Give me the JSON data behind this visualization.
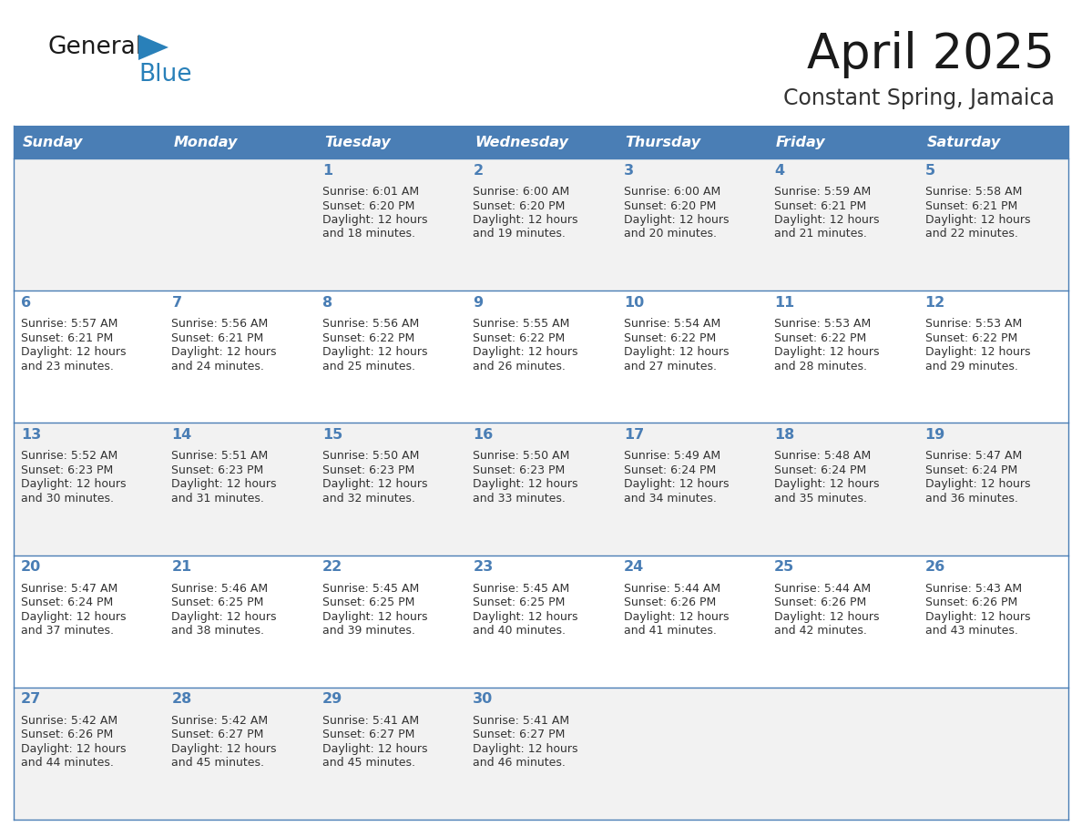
{
  "title": "April 2025",
  "subtitle": "Constant Spring, Jamaica",
  "header_bg_color": "#4a7eb5",
  "header_text_color": "#ffffff",
  "row_bg_even": "#f2f2f2",
  "row_bg_odd": "#ffffff",
  "grid_line_color": "#4a7eb5",
  "day_number_color": "#4a7eb5",
  "cell_text_color": "#333333",
  "days_of_week": [
    "Sunday",
    "Monday",
    "Tuesday",
    "Wednesday",
    "Thursday",
    "Friday",
    "Saturday"
  ],
  "calendar_data": [
    [
      {
        "day": "",
        "sunrise": "",
        "sunset": "",
        "daylight": ""
      },
      {
        "day": "",
        "sunrise": "",
        "sunset": "",
        "daylight": ""
      },
      {
        "day": "1",
        "sunrise": "Sunrise: 6:01 AM",
        "sunset": "Sunset: 6:20 PM",
        "daylight": "Daylight: 12 hours\nand 18 minutes."
      },
      {
        "day": "2",
        "sunrise": "Sunrise: 6:00 AM",
        "sunset": "Sunset: 6:20 PM",
        "daylight": "Daylight: 12 hours\nand 19 minutes."
      },
      {
        "day": "3",
        "sunrise": "Sunrise: 6:00 AM",
        "sunset": "Sunset: 6:20 PM",
        "daylight": "Daylight: 12 hours\nand 20 minutes."
      },
      {
        "day": "4",
        "sunrise": "Sunrise: 5:59 AM",
        "sunset": "Sunset: 6:21 PM",
        "daylight": "Daylight: 12 hours\nand 21 minutes."
      },
      {
        "day": "5",
        "sunrise": "Sunrise: 5:58 AM",
        "sunset": "Sunset: 6:21 PM",
        "daylight": "Daylight: 12 hours\nand 22 minutes."
      }
    ],
    [
      {
        "day": "6",
        "sunrise": "Sunrise: 5:57 AM",
        "sunset": "Sunset: 6:21 PM",
        "daylight": "Daylight: 12 hours\nand 23 minutes."
      },
      {
        "day": "7",
        "sunrise": "Sunrise: 5:56 AM",
        "sunset": "Sunset: 6:21 PM",
        "daylight": "Daylight: 12 hours\nand 24 minutes."
      },
      {
        "day": "8",
        "sunrise": "Sunrise: 5:56 AM",
        "sunset": "Sunset: 6:22 PM",
        "daylight": "Daylight: 12 hours\nand 25 minutes."
      },
      {
        "day": "9",
        "sunrise": "Sunrise: 5:55 AM",
        "sunset": "Sunset: 6:22 PM",
        "daylight": "Daylight: 12 hours\nand 26 minutes."
      },
      {
        "day": "10",
        "sunrise": "Sunrise: 5:54 AM",
        "sunset": "Sunset: 6:22 PM",
        "daylight": "Daylight: 12 hours\nand 27 minutes."
      },
      {
        "day": "11",
        "sunrise": "Sunrise: 5:53 AM",
        "sunset": "Sunset: 6:22 PM",
        "daylight": "Daylight: 12 hours\nand 28 minutes."
      },
      {
        "day": "12",
        "sunrise": "Sunrise: 5:53 AM",
        "sunset": "Sunset: 6:22 PM",
        "daylight": "Daylight: 12 hours\nand 29 minutes."
      }
    ],
    [
      {
        "day": "13",
        "sunrise": "Sunrise: 5:52 AM",
        "sunset": "Sunset: 6:23 PM",
        "daylight": "Daylight: 12 hours\nand 30 minutes."
      },
      {
        "day": "14",
        "sunrise": "Sunrise: 5:51 AM",
        "sunset": "Sunset: 6:23 PM",
        "daylight": "Daylight: 12 hours\nand 31 minutes."
      },
      {
        "day": "15",
        "sunrise": "Sunrise: 5:50 AM",
        "sunset": "Sunset: 6:23 PM",
        "daylight": "Daylight: 12 hours\nand 32 minutes."
      },
      {
        "day": "16",
        "sunrise": "Sunrise: 5:50 AM",
        "sunset": "Sunset: 6:23 PM",
        "daylight": "Daylight: 12 hours\nand 33 minutes."
      },
      {
        "day": "17",
        "sunrise": "Sunrise: 5:49 AM",
        "sunset": "Sunset: 6:24 PM",
        "daylight": "Daylight: 12 hours\nand 34 minutes."
      },
      {
        "day": "18",
        "sunrise": "Sunrise: 5:48 AM",
        "sunset": "Sunset: 6:24 PM",
        "daylight": "Daylight: 12 hours\nand 35 minutes."
      },
      {
        "day": "19",
        "sunrise": "Sunrise: 5:47 AM",
        "sunset": "Sunset: 6:24 PM",
        "daylight": "Daylight: 12 hours\nand 36 minutes."
      }
    ],
    [
      {
        "day": "20",
        "sunrise": "Sunrise: 5:47 AM",
        "sunset": "Sunset: 6:24 PM",
        "daylight": "Daylight: 12 hours\nand 37 minutes."
      },
      {
        "day": "21",
        "sunrise": "Sunrise: 5:46 AM",
        "sunset": "Sunset: 6:25 PM",
        "daylight": "Daylight: 12 hours\nand 38 minutes."
      },
      {
        "day": "22",
        "sunrise": "Sunrise: 5:45 AM",
        "sunset": "Sunset: 6:25 PM",
        "daylight": "Daylight: 12 hours\nand 39 minutes."
      },
      {
        "day": "23",
        "sunrise": "Sunrise: 5:45 AM",
        "sunset": "Sunset: 6:25 PM",
        "daylight": "Daylight: 12 hours\nand 40 minutes."
      },
      {
        "day": "24",
        "sunrise": "Sunrise: 5:44 AM",
        "sunset": "Sunset: 6:26 PM",
        "daylight": "Daylight: 12 hours\nand 41 minutes."
      },
      {
        "day": "25",
        "sunrise": "Sunrise: 5:44 AM",
        "sunset": "Sunset: 6:26 PM",
        "daylight": "Daylight: 12 hours\nand 42 minutes."
      },
      {
        "day": "26",
        "sunrise": "Sunrise: 5:43 AM",
        "sunset": "Sunset: 6:26 PM",
        "daylight": "Daylight: 12 hours\nand 43 minutes."
      }
    ],
    [
      {
        "day": "27",
        "sunrise": "Sunrise: 5:42 AM",
        "sunset": "Sunset: 6:26 PM",
        "daylight": "Daylight: 12 hours\nand 44 minutes."
      },
      {
        "day": "28",
        "sunrise": "Sunrise: 5:42 AM",
        "sunset": "Sunset: 6:27 PM",
        "daylight": "Daylight: 12 hours\nand 45 minutes."
      },
      {
        "day": "29",
        "sunrise": "Sunrise: 5:41 AM",
        "sunset": "Sunset: 6:27 PM",
        "daylight": "Daylight: 12 hours\nand 45 minutes."
      },
      {
        "day": "30",
        "sunrise": "Sunrise: 5:41 AM",
        "sunset": "Sunset: 6:27 PM",
        "daylight": "Daylight: 12 hours\nand 46 minutes."
      },
      {
        "day": "",
        "sunrise": "",
        "sunset": "",
        "daylight": ""
      },
      {
        "day": "",
        "sunrise": "",
        "sunset": "",
        "daylight": ""
      },
      {
        "day": "",
        "sunrise": "",
        "sunset": "",
        "daylight": ""
      }
    ]
  ],
  "logo_general_color": "#1a1a1a",
  "logo_blue_color": "#2980b9"
}
